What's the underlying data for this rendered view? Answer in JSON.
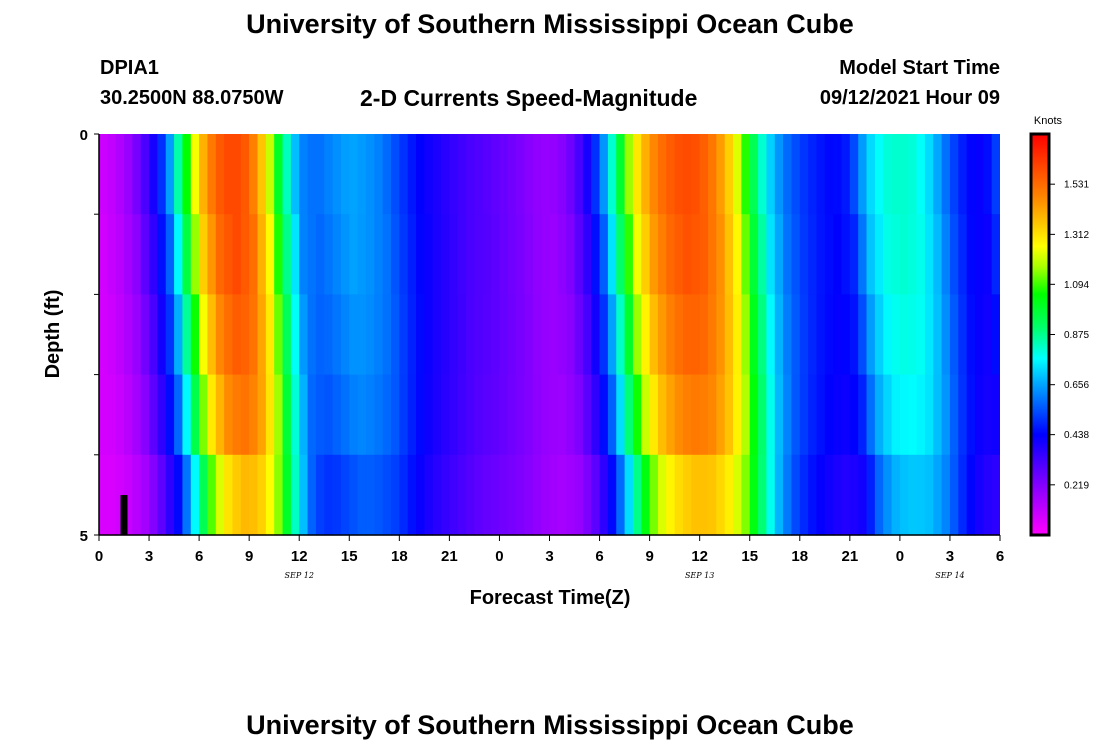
{
  "header": {
    "title": "University of Southern Mississippi Ocean Cube",
    "station": "DPIA1",
    "location": "30.2500N  88.0750W",
    "chart_title": "2-D Currents Speed-Magnitude",
    "start_label": "Model Start Time",
    "start_value": "09/12/2021 Hour 09"
  },
  "footer": {
    "title": "University of Southern Mississippi Ocean Cube"
  },
  "colors": {
    "palette": [
      "#ff00ff",
      "#aa00ff",
      "#5500ff",
      "#0000ff",
      "#0055ff",
      "#00aaff",
      "#00ffff",
      "#00ff77",
      "#00ff00",
      "#88ff00",
      "#ffff00",
      "#ffaa00",
      "#ff5500",
      "#ff0000"
    ]
  },
  "chart_data": {
    "type": "heatmap",
    "title": "2-D Currents Speed-Magnitude",
    "xlabel": "Forecast Time(Z)",
    "ylabel": "Depth (ft)",
    "units": "Knots",
    "x_range_hours": [
      0,
      54
    ],
    "y_range": [
      0,
      5
    ],
    "x_tick_labels": [
      "0",
      "3",
      "6",
      "9",
      "12",
      "15",
      "18",
      "21",
      "0",
      "3",
      "6",
      "9",
      "12",
      "15",
      "18",
      "21",
      "0",
      "3",
      "6"
    ],
    "y_tick_labels": [
      "0",
      "5"
    ],
    "day_labels": [
      {
        "label": "SEP 12",
        "hour": 12
      },
      {
        "label": "SEP 13",
        "hour": 36
      },
      {
        "label": "SEP 14",
        "hour": 51
      }
    ],
    "colorbar_ticks": [
      "1.531",
      "1.312",
      "1.094",
      "0.875",
      "0.656",
      "0.438",
      "0.219"
    ],
    "colorbar_tick_values": [
      1.531,
      1.312,
      1.094,
      0.875,
      0.656,
      0.438,
      0.219
    ],
    "colorbar_range": [
      0,
      1.75
    ],
    "marker_hour": 1.5,
    "depth_layers": 5,
    "layer_shift_hours": [
      0,
      0.2,
      0.4,
      0.6,
      0.9
    ],
    "layer_scale": [
      1.0,
      0.99,
      0.97,
      0.94,
      0.86
    ],
    "profile_hours": [
      0,
      1,
      2,
      3,
      4,
      5,
      6,
      7,
      8,
      9,
      10,
      11,
      12,
      13,
      14,
      15,
      16,
      17,
      18,
      19,
      20,
      21,
      22,
      23,
      24,
      25,
      26,
      27,
      28,
      29,
      30,
      31,
      32,
      33,
      34,
      35,
      36,
      37,
      38,
      39,
      40,
      41,
      42,
      43,
      44,
      45,
      46,
      47,
      48,
      49,
      50,
      51,
      52,
      53,
      54
    ],
    "profile_speeds": [
      0.08,
      0.12,
      0.2,
      0.35,
      0.55,
      0.95,
      1.35,
      1.55,
      1.62,
      1.55,
      1.3,
      0.9,
      0.62,
      0.58,
      0.62,
      0.66,
      0.64,
      0.6,
      0.52,
      0.45,
      0.4,
      0.36,
      0.32,
      0.3,
      0.27,
      0.24,
      0.2,
      0.18,
      0.22,
      0.35,
      0.55,
      0.9,
      1.25,
      1.45,
      1.55,
      1.6,
      1.58,
      1.48,
      1.3,
      1.0,
      0.75,
      0.6,
      0.52,
      0.47,
      0.44,
      0.48,
      0.7,
      0.8,
      0.82,
      0.8,
      0.7,
      0.55,
      0.45,
      0.42,
      0.55
    ]
  }
}
